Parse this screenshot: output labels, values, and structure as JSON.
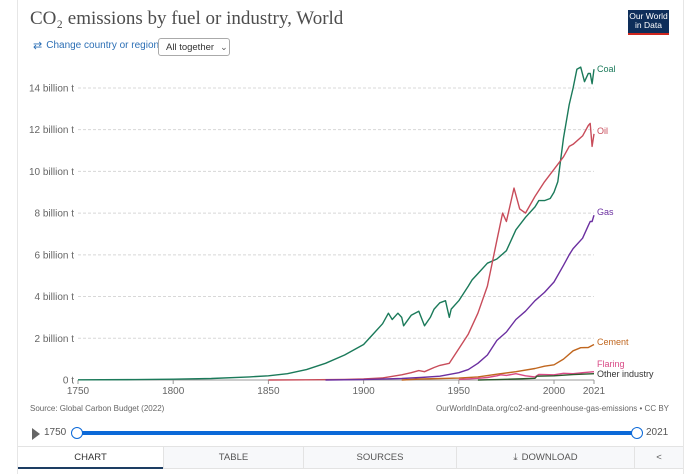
{
  "header": {
    "title": "CO₂ emissions by fuel or industry, World",
    "change_region_label": "Change country or region",
    "change_region_icon": "swap-arrows-icon",
    "dropdown_value": "All together",
    "logo_line1": "Our World",
    "logo_line2": "in Data"
  },
  "footer": {
    "source": "Source: Global Carbon Budget (2022)",
    "url": "OurWorldInData.org/co2-and-greenhouse-gas-emissions • CC BY"
  },
  "timeline": {
    "start_label": "1750",
    "end_label": "2021",
    "start_fraction": 0,
    "end_fraction": 1
  },
  "tabs": [
    {
      "label": "CHART",
      "active": true
    },
    {
      "label": "TABLE",
      "active": false
    },
    {
      "label": "SOURCES",
      "active": false
    },
    {
      "label": "DOWNLOAD",
      "active": false,
      "icon": "download-icon"
    },
    {
      "label": "",
      "active": false,
      "icon": "share-icon"
    }
  ],
  "colors": {
    "coal": "#1b7a5a",
    "oil": "#c84c5a",
    "gas": "#6b2fa0",
    "cement": "#c0661e",
    "flaring": "#d94a86",
    "other": "#2d5a2d",
    "grid": "#d8d8d8",
    "accent": "#0b69d8"
  },
  "chart_data": {
    "type": "line",
    "title": "CO₂ emissions by fuel or industry, World",
    "xlabel": "",
    "ylabel": "",
    "xlim": [
      1750,
      2021
    ],
    "ylim": [
      0,
      15
    ],
    "x_ticks": [
      "1750",
      "1800",
      "1850",
      "1900",
      "1950",
      "2000",
      "2021"
    ],
    "y_ticks": [
      {
        "value": 0,
        "label": "0 t"
      },
      {
        "value": 2,
        "label": "2 billion t"
      },
      {
        "value": 4,
        "label": "4 billion t"
      },
      {
        "value": 6,
        "label": "6 billion t"
      },
      {
        "value": 8,
        "label": "8 billion t"
      },
      {
        "value": 10,
        "label": "10 billion t"
      },
      {
        "value": 12,
        "label": "12 billion t"
      },
      {
        "value": 14,
        "label": "14 billion t"
      }
    ],
    "grid": true,
    "legend": "inline-right",
    "unit": "billion t",
    "series": [
      {
        "name": "Coal",
        "key": "coal",
        "x": [
          1750,
          1780,
          1800,
          1820,
          1840,
          1850,
          1860,
          1870,
          1880,
          1890,
          1900,
          1905,
          1910,
          1913,
          1915,
          1918,
          1920,
          1921,
          1925,
          1929,
          1932,
          1935,
          1937,
          1940,
          1943,
          1945,
          1946,
          1950,
          1955,
          1957,
          1960,
          1965,
          1970,
          1975,
          1980,
          1985,
          1990,
          1992,
          1995,
          1998,
          2000,
          2002,
          2005,
          2008,
          2010,
          2012,
          2014,
          2016,
          2018,
          2019,
          2020,
          2021
        ],
        "values": [
          0.01,
          0.02,
          0.04,
          0.07,
          0.15,
          0.2,
          0.3,
          0.5,
          0.8,
          1.2,
          1.7,
          2.2,
          2.7,
          3.2,
          2.9,
          3.2,
          3.0,
          2.6,
          3.1,
          3.3,
          2.6,
          3.0,
          3.4,
          3.7,
          3.8,
          3.0,
          3.4,
          3.8,
          4.5,
          4.8,
          5.1,
          5.6,
          5.8,
          6.2,
          7.2,
          7.8,
          8.3,
          8.6,
          8.6,
          8.7,
          9.0,
          9.5,
          11.6,
          13.2,
          14.0,
          14.9,
          15.0,
          14.3,
          14.7,
          14.7,
          14.2,
          14.9
        ]
      },
      {
        "name": "Oil",
        "key": "oil",
        "x": [
          1850,
          1870,
          1890,
          1900,
          1910,
          1920,
          1925,
          1929,
          1932,
          1937,
          1940,
          1945,
          1950,
          1955,
          1960,
          1965,
          1970,
          1973,
          1975,
          1979,
          1982,
          1985,
          1990,
          1995,
          2000,
          2005,
          2008,
          2010,
          2015,
          2018,
          2019,
          2020,
          2021
        ],
        "values": [
          0.0,
          0.01,
          0.03,
          0.05,
          0.1,
          0.25,
          0.35,
          0.45,
          0.4,
          0.6,
          0.7,
          0.8,
          1.5,
          2.2,
          3.2,
          4.5,
          6.7,
          8.0,
          7.6,
          9.2,
          8.2,
          8.0,
          8.8,
          9.5,
          10.1,
          10.7,
          11.2,
          11.3,
          11.7,
          12.2,
          12.3,
          11.2,
          11.8
        ]
      },
      {
        "name": "Gas",
        "key": "gas",
        "x": [
          1880,
          1900,
          1920,
          1930,
          1940,
          1950,
          1955,
          1960,
          1965,
          1970,
          1975,
          1980,
          1985,
          1990,
          1995,
          2000,
          2005,
          2008,
          2010,
          2015,
          2018,
          2019,
          2020,
          2021
        ],
        "values": [
          0.0,
          0.02,
          0.07,
          0.12,
          0.18,
          0.35,
          0.5,
          0.8,
          1.2,
          1.9,
          2.3,
          2.9,
          3.3,
          3.8,
          4.2,
          4.7,
          5.5,
          6.0,
          6.3,
          6.8,
          7.4,
          7.6,
          7.6,
          7.9
        ]
      },
      {
        "name": "Cement",
        "key": "cement",
        "x": [
          1920,
          1930,
          1950,
          1960,
          1970,
          1980,
          1990,
          1995,
          2000,
          2005,
          2010,
          2014,
          2018,
          2021
        ],
        "values": [
          0.0,
          0.05,
          0.09,
          0.15,
          0.28,
          0.4,
          0.55,
          0.66,
          0.73,
          1.0,
          1.4,
          1.55,
          1.56,
          1.7
        ]
      },
      {
        "name": "Flaring",
        "key": "flaring",
        "x": [
          1950,
          1960,
          1965,
          1970,
          1972,
          1975,
          1980,
          1985,
          1990,
          1992,
          1995,
          2000,
          2005,
          2010,
          2015,
          2021
        ],
        "values": [
          0.03,
          0.08,
          0.12,
          0.2,
          0.25,
          0.22,
          0.3,
          0.2,
          0.15,
          0.27,
          0.26,
          0.25,
          0.32,
          0.3,
          0.35,
          0.4
        ]
      },
      {
        "name": "Other industry",
        "key": "other",
        "x": [
          1960,
          1970,
          1980,
          1990,
          1991,
          2000,
          2010,
          2021
        ],
        "values": [
          0.0,
          0.02,
          0.05,
          0.08,
          0.18,
          0.2,
          0.26,
          0.3
        ]
      }
    ]
  }
}
